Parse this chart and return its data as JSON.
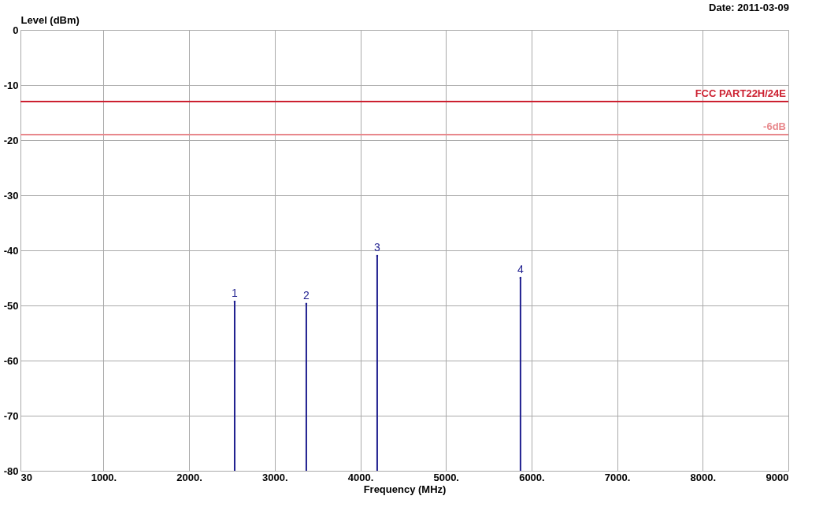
{
  "chart_data": {
    "type": "lollipop",
    "title": "Date: 2011-03-09",
    "xlabel": "Frequency (MHz)",
    "ylabel": "Level (dBm)",
    "x": [
      2532,
      3369,
      4197,
      5871
    ],
    "series": [
      {
        "color": "#1f1f8f",
        "values": [
          -49.3,
          -49.7,
          -41,
          -45
        ]
      }
    ],
    "xlim": [
      30,
      9000
    ],
    "xticks": [
      30,
      {
        "value": 1000,
        "label": "1000."
      },
      {
        "value": 2000,
        "label": "2000."
      },
      {
        "value": 3000,
        "label": "3000."
      },
      {
        "value": 4000,
        "label": "4000."
      },
      {
        "value": 5000,
        "label": "5000."
      },
      {
        "value": 6000,
        "label": "6000."
      },
      {
        "value": 7000,
        "label": "7000."
      },
      {
        "value": 8000,
        "label": "8000."
      },
      9000
    ],
    "ylim": [
      -80,
      0
    ],
    "yticks": [
      -80,
      -70,
      -60,
      -50,
      -40,
      -30,
      -20,
      -10,
      0
    ],
    "ref_lines": [
      {
        "axis": "y",
        "value": -13,
        "label": "FCC PART22H/24E",
        "color": "#cc2030"
      },
      {
        "axis": "y",
        "value": -19,
        "label": "-6dB",
        "color": "#e8888c"
      }
    ],
    "annotations": [
      {
        "text": "1",
        "x": 2532,
        "y": -49.3
      },
      {
        "text": "2",
        "x": 3369,
        "y": -49.7
      },
      {
        "text": "3",
        "x": 4197,
        "y": -41
      },
      {
        "text": "4",
        "x": 5871,
        "y": -45
      }
    ],
    "grid": true
  }
}
